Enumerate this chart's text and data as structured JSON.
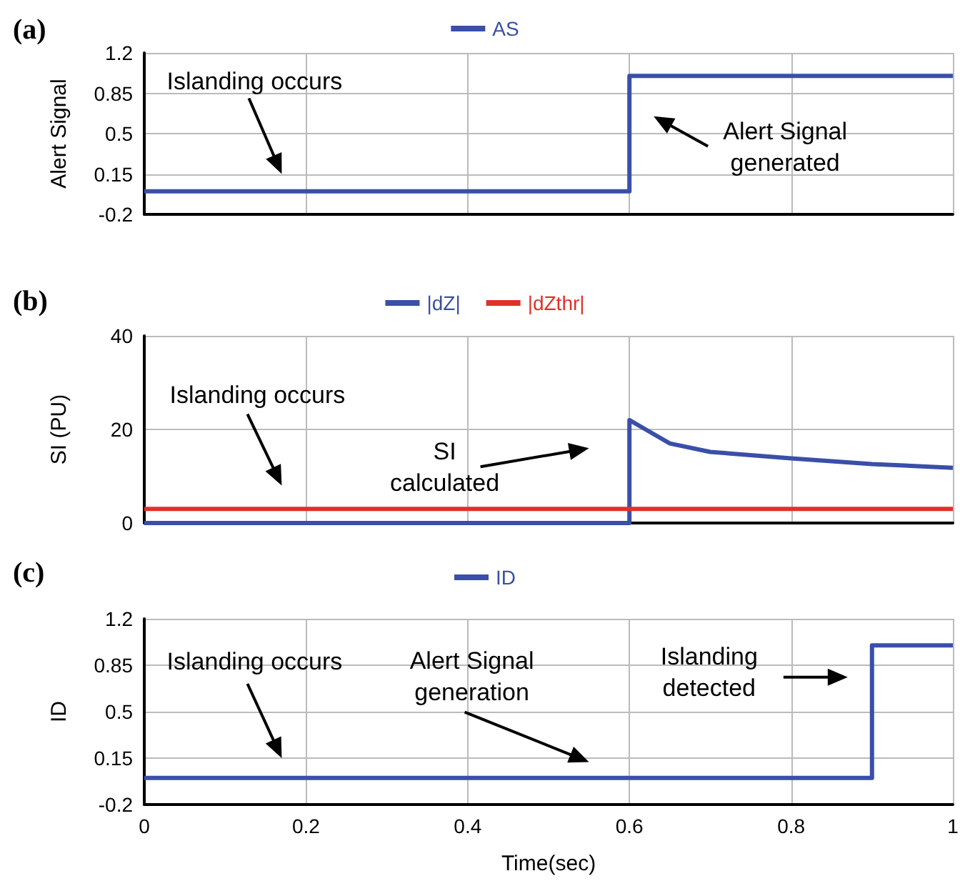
{
  "chart_data": [
    {
      "type": "line",
      "title": "(a)",
      "ylabel": "Alert Signal",
      "legend": "top",
      "grid": true,
      "tick_labels": "y",
      "xlim": [
        0,
        1
      ],
      "xticks": [
        0,
        0.2,
        0.4,
        0.6,
        0.8,
        1
      ],
      "ylim": [
        -0.2,
        1.2
      ],
      "yticks": [
        -0.2,
        0.15,
        0.5,
        0.85,
        1.2
      ],
      "series": [
        {
          "name": "AS",
          "color": "#3a4fa8",
          "x": [
            0,
            0.6,
            0.6,
            1
          ],
          "values": [
            0,
            0,
            1,
            1
          ]
        }
      ],
      "annotations": [
        "Islanding occurs",
        "Alert Signal\ngenerated"
      ]
    },
    {
      "type": "line",
      "title": "(b)",
      "ylabel": "SI (PU)",
      "legend": "top",
      "grid": true,
      "tick_labels": "y",
      "xlim": [
        0,
        1
      ],
      "xticks": [
        0,
        0.2,
        0.4,
        0.6,
        0.8,
        1
      ],
      "ylim": [
        0,
        40
      ],
      "yticks": [
        0,
        20,
        40
      ],
      "series": [
        {
          "name": "|dZ|",
          "color": "#3a4fa8",
          "x": [
            0,
            0.6,
            0.6,
            0.62,
            0.65,
            0.7,
            0.8,
            0.9,
            1
          ],
          "values": [
            0,
            0,
            22,
            20,
            17,
            15.2,
            13.8,
            12.6,
            11.8
          ]
        },
        {
          "name": "|dZthr|",
          "color": "#e0302a",
          "x": [
            0,
            1
          ],
          "values": [
            3,
            3
          ]
        }
      ],
      "annotations": [
        "Islanding occurs",
        "SI\ncalculated"
      ]
    },
    {
      "type": "line",
      "title": "(c)",
      "ylabel": "ID",
      "xlabel": "Time(sec)",
      "legend": "top",
      "grid": true,
      "xlim": [
        0,
        1
      ],
      "xticks": [
        0,
        0.2,
        0.4,
        0.6,
        0.8,
        1
      ],
      "ylim": [
        -0.2,
        1.2
      ],
      "yticks": [
        -0.2,
        0.15,
        0.5,
        0.85,
        1.2
      ],
      "series": [
        {
          "name": "ID",
          "color": "#3a4fa8",
          "x": [
            0,
            0.9,
            0.9,
            1
          ],
          "values": [
            0,
            0,
            1,
            1
          ]
        }
      ],
      "annotations": [
        "Islanding occurs",
        "Alert Signal\ngeneration",
        "Islanding\ndetected"
      ]
    }
  ]
}
